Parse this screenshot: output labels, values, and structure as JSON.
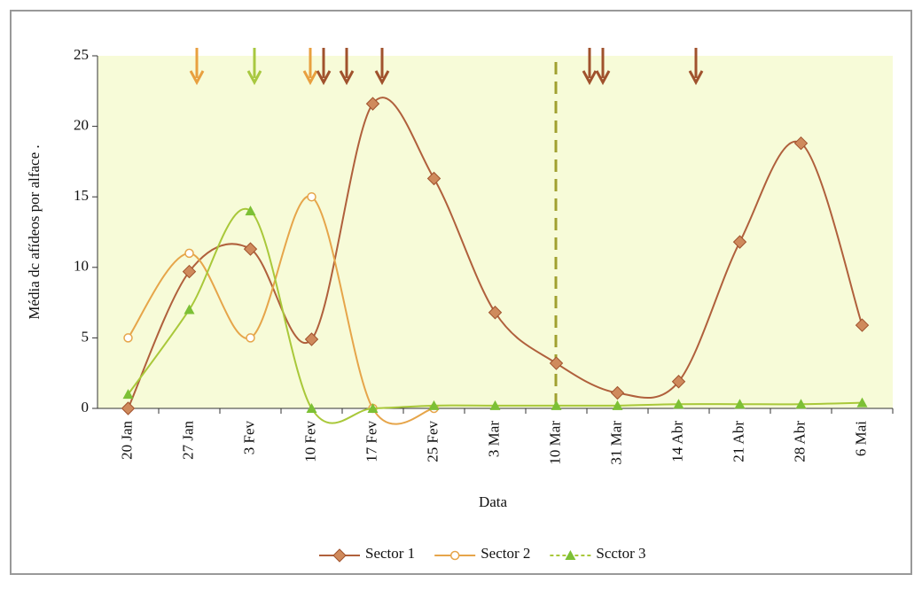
{
  "chart_data": {
    "type": "line",
    "y_label": "Média dc afídeos por alface .",
    "x_label": "Data",
    "categories": [
      "20 Jan",
      "27 Jan",
      "3 Fev",
      "10 Fev",
      "17 Fev",
      "25 Fev",
      "3 Mar",
      "10 Mar",
      "31 Mar",
      "14 Abr",
      "21 Abr",
      "28 Abr",
      "6 Mai"
    ],
    "series": [
      {
        "name": "Sector 1",
        "color": "#b0603c",
        "marker": "diamond",
        "marker_color": "#cf8a5c",
        "values": [
          0,
          9.7,
          11.3,
          4.9,
          21.6,
          16.3,
          6.8,
          3.2,
          1.1,
          1.9,
          11.8,
          18.8,
          5.9
        ]
      },
      {
        "name": "Sector 2",
        "color": "#e6a54a",
        "marker": "circle",
        "marker_color": "#e6a54a",
        "values": [
          5,
          11,
          5,
          15,
          0,
          0,
          null,
          null,
          null,
          null,
          null,
          null,
          null
        ]
      },
      {
        "name": "Scctor 3",
        "color": "#a9c83a",
        "marker": "triangle",
        "marker_color": "#7cc035",
        "values": [
          1,
          7,
          14,
          0,
          0,
          0.2,
          0.2,
          0.2,
          0.2,
          0.3,
          0.3,
          0.3,
          0.4
        ]
      }
    ],
    "ylim": [
      0,
      25
    ],
    "yticks": [
      0,
      5,
      10,
      15,
      20,
      25
    ],
    "smooth": true
  }
}
